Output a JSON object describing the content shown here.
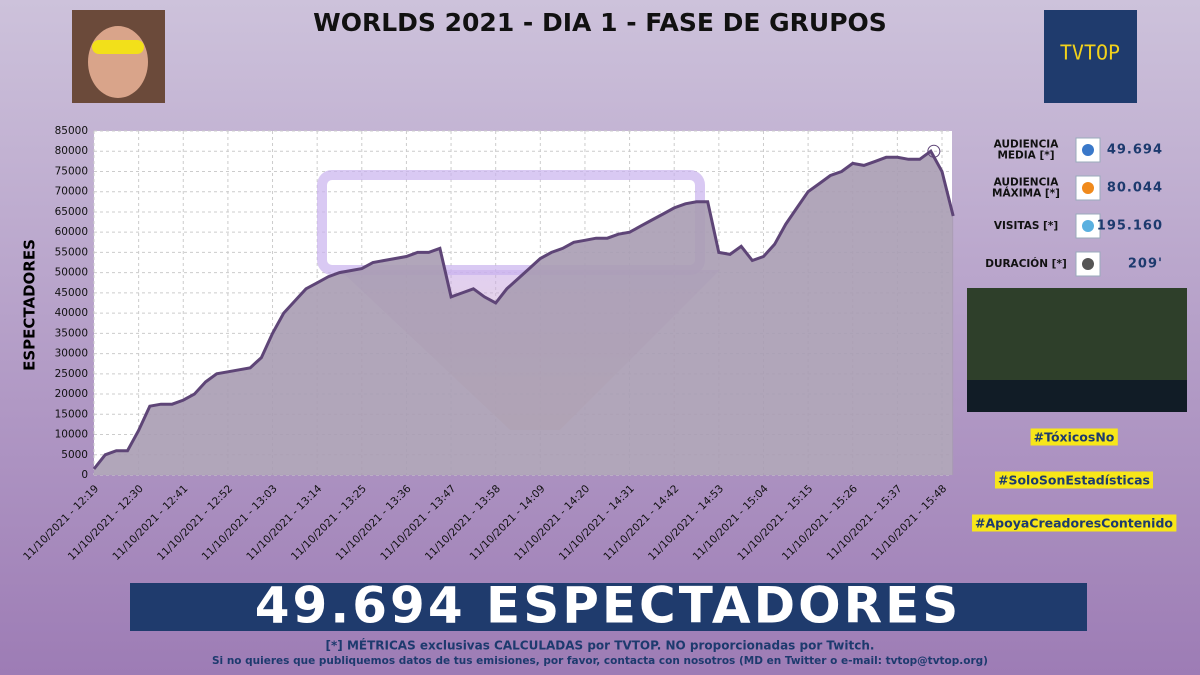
{
  "chart_data": {
    "type": "area",
    "title": "WORLDS 2021 - DIA 1 - FASE DE GRUPOS",
    "y_label": "ESPECTADORES",
    "categories": [
      "11/10/2021 - 12:19",
      null,
      null,
      null,
      "11/10/2021 - 12:30",
      null,
      null,
      null,
      "11/10/2021 - 12:41",
      null,
      null,
      null,
      "11/10/2021 - 12:52",
      null,
      null,
      null,
      "11/10/2021 - 13:03",
      null,
      null,
      null,
      "11/10/2021 - 13:14",
      null,
      null,
      null,
      "11/10/2021 - 13:25",
      null,
      null,
      null,
      "11/10/2021 - 13:36",
      null,
      null,
      null,
      "11/10/2021 - 13:47",
      null,
      null,
      null,
      "11/10/2021 - 13:58",
      null,
      null,
      null,
      "11/10/2021 - 14:09",
      null,
      null,
      null,
      "11/10/2021 - 14:20",
      null,
      null,
      null,
      "11/10/2021 - 14:31",
      null,
      null,
      null,
      "11/10/2021 - 14:42",
      null,
      null,
      null,
      "11/10/2021 - 14:53",
      null,
      null,
      null,
      "11/10/2021 - 15:04",
      null,
      null,
      null,
      "11/10/2021 - 15:15",
      null,
      null,
      null,
      "11/10/2021 - 15:26",
      null,
      null,
      null,
      "11/10/2021 - 15:37",
      null,
      null,
      null,
      "11/10/2021 - 15:48",
      null
    ],
    "values": [
      1500,
      5000,
      6000,
      6000,
      11000,
      17000,
      17500,
      17500,
      18500,
      20000,
      23000,
      25000,
      25500,
      26000,
      26500,
      29000,
      35000,
      40000,
      43000,
      46000,
      47500,
      49000,
      50000,
      50500,
      51000,
      52500,
      53000,
      53500,
      54000,
      55000,
      55000,
      56000,
      44000,
      45000,
      46000,
      44000,
      42500,
      46000,
      48500,
      51000,
      53500,
      55000,
      56000,
      57500,
      58000,
      58500,
      58500,
      59500,
      60000,
      61500,
      63000,
      64500,
      66000,
      67000,
      67500,
      67500,
      55000,
      54500,
      56500,
      53000,
      54000,
      57000,
      62000,
      66000,
      70000,
      72000,
      74000,
      75000,
      77000,
      76500,
      77500,
      78500,
      78500,
      78000,
      78000,
      80000,
      75000,
      64000
    ],
    "line_color": "#5e4577",
    "area_color": "#a89cb3",
    "ylim": [
      0,
      85000
    ],
    "yticks": [
      0,
      5000,
      10000,
      15000,
      20000,
      25000,
      30000,
      35000,
      40000,
      45000,
      50000,
      55000,
      60000,
      65000,
      70000,
      75000,
      80000,
      85000
    ],
    "grid": true
  },
  "logo_text": "TVTOP",
  "stats": [
    {
      "label": [
        "AUDIENCIA",
        "MEDIA [*]"
      ],
      "value": "49.694"
    },
    {
      "label": [
        "AUDIENCIA",
        "MÁXIMA [*]"
      ],
      "value": "80.044"
    },
    {
      "label": [
        "VISITAS [*]"
      ],
      "value": "195.160"
    },
    {
      "label": [
        "DURACIÓN [*]"
      ],
      "value": "209'"
    }
  ],
  "hashtags": [
    "#TóxicosNo",
    "#SoloSonEstadísticas",
    "#ApoyaCreadoresContenido"
  ],
  "banner": "49.694 ESPECTADORES",
  "footer": [
    "[*] MÉTRICAS exclusivas CALCULADAS por TVTOP. NO proporcionadas por Twitch.",
    "Si no quieres que publiquemos datos de tus emisiones, por favor, contacta con nosotros (MD en Twitter o e-mail: tvtop@tvtop.org)"
  ]
}
